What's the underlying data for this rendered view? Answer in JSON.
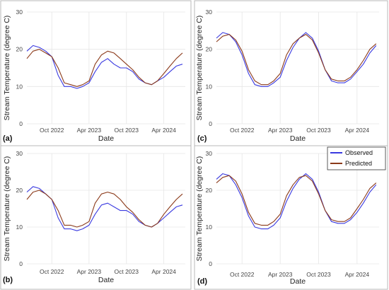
{
  "figure": {
    "legend": {
      "entries": [
        {
          "label": "Observed",
          "color": "#3a3ae0"
        },
        {
          "label": "Predicted",
          "color": "#8b3a1a"
        }
      ]
    }
  },
  "chart_data": [
    {
      "panel_label": "(a)",
      "type": "line",
      "xlabel": "Date",
      "ylabel": "Stream Temperature (degree C)",
      "ylim": [
        0,
        30
      ],
      "yticks": [
        0,
        10,
        20,
        30
      ],
      "xlim": [
        "2022-06-01",
        "2024-07-15"
      ],
      "xticks": [
        {
          "date": "2022-10-01",
          "label": "Oct 2022"
        },
        {
          "date": "2023-04-01",
          "label": "Apr 2023"
        },
        {
          "date": "2023-10-01",
          "label": "Oct 2023"
        },
        {
          "date": "2024-04-01",
          "label": "Apr 2024"
        }
      ],
      "grid": true,
      "series": [
        {
          "name": "Observed",
          "color": "#3a3ae0",
          "x": [
            "2022-06-01",
            "2022-07-01",
            "2022-08-01",
            "2022-09-01",
            "2022-10-01",
            "2022-11-01",
            "2022-12-01",
            "2023-01-01",
            "2023-02-01",
            "2023-03-01",
            "2023-04-01",
            "2023-05-01",
            "2023-06-01",
            "2023-07-01",
            "2023-08-01",
            "2023-09-01",
            "2023-10-01",
            "2023-11-01",
            "2023-12-01",
            "2024-01-01",
            "2024-02-01",
            "2024-03-01",
            "2024-04-01",
            "2024-05-01",
            "2024-06-01",
            "2024-07-01"
          ],
          "y": [
            19.5,
            21.0,
            20.5,
            19.5,
            18.0,
            13.0,
            10.0,
            10.0,
            9.5,
            10.0,
            11.0,
            14.0,
            16.5,
            17.5,
            16.0,
            15.0,
            15.0,
            14.0,
            12.0,
            11.0,
            10.5,
            11.5,
            12.5,
            14.0,
            15.5,
            16.0
          ]
        },
        {
          "name": "Predicted",
          "color": "#8b3a1a",
          "x": [
            "2022-06-01",
            "2022-07-01",
            "2022-08-01",
            "2022-09-01",
            "2022-10-01",
            "2022-11-01",
            "2022-12-01",
            "2023-01-01",
            "2023-02-01",
            "2023-03-01",
            "2023-04-01",
            "2023-05-01",
            "2023-06-01",
            "2023-07-01",
            "2023-08-01",
            "2023-09-01",
            "2023-10-01",
            "2023-11-01",
            "2023-12-01",
            "2024-01-01",
            "2024-02-01",
            "2024-03-01",
            "2024-04-01",
            "2024-05-01",
            "2024-06-01",
            "2024-07-01"
          ],
          "y": [
            17.5,
            19.5,
            20.0,
            19.0,
            18.0,
            15.0,
            11.0,
            10.5,
            10.0,
            10.5,
            11.5,
            16.0,
            18.5,
            19.5,
            19.0,
            17.5,
            16.0,
            14.5,
            12.5,
            11.0,
            10.5,
            11.5,
            13.5,
            15.5,
            17.5,
            19.0
          ]
        }
      ]
    },
    {
      "panel_label": "(b)",
      "type": "line",
      "xlabel": "Date",
      "ylabel": "Stream Temperature (degree C)",
      "ylim": [
        0,
        30
      ],
      "yticks": [
        0,
        10,
        20,
        30
      ],
      "xlim": [
        "2022-06-01",
        "2024-07-15"
      ],
      "xticks": [
        {
          "date": "2022-10-01",
          "label": "Oct 2022"
        },
        {
          "date": "2023-04-01",
          "label": "Apr 2023"
        },
        {
          "date": "2023-10-01",
          "label": "Oct 2023"
        },
        {
          "date": "2024-04-01",
          "label": "Apr 2024"
        }
      ],
      "grid": true,
      "series": [
        {
          "name": "Observed",
          "color": "#3a3ae0",
          "x": [
            "2022-06-01",
            "2022-07-01",
            "2022-08-01",
            "2022-09-01",
            "2022-10-01",
            "2022-11-01",
            "2022-12-01",
            "2023-01-01",
            "2023-02-01",
            "2023-03-01",
            "2023-04-01",
            "2023-05-01",
            "2023-06-01",
            "2023-07-01",
            "2023-08-01",
            "2023-09-01",
            "2023-10-01",
            "2023-11-01",
            "2023-12-01",
            "2024-01-01",
            "2024-02-01",
            "2024-03-01",
            "2024-04-01",
            "2024-05-01",
            "2024-06-01",
            "2024-07-01"
          ],
          "y": [
            19.5,
            21.0,
            20.5,
            19.0,
            17.5,
            12.5,
            9.5,
            9.5,
            9.0,
            9.5,
            10.5,
            13.5,
            16.0,
            16.5,
            15.5,
            14.5,
            14.5,
            13.5,
            11.5,
            10.5,
            10.0,
            11.0,
            12.5,
            14.0,
            15.5,
            16.0
          ]
        },
        {
          "name": "Predicted",
          "color": "#8b3a1a",
          "x": [
            "2022-06-01",
            "2022-07-01",
            "2022-08-01",
            "2022-09-01",
            "2022-10-01",
            "2022-11-01",
            "2022-12-01",
            "2023-01-01",
            "2023-02-01",
            "2023-03-01",
            "2023-04-01",
            "2023-05-01",
            "2023-06-01",
            "2023-07-01",
            "2023-08-01",
            "2023-09-01",
            "2023-10-01",
            "2023-11-01",
            "2023-12-01",
            "2024-01-01",
            "2024-02-01",
            "2024-03-01",
            "2024-04-01",
            "2024-05-01",
            "2024-06-01",
            "2024-07-01"
          ],
          "y": [
            17.5,
            19.5,
            20.0,
            19.0,
            17.5,
            14.5,
            10.5,
            10.5,
            10.0,
            10.5,
            11.5,
            16.5,
            19.0,
            19.5,
            19.0,
            17.5,
            15.5,
            14.0,
            12.0,
            10.5,
            10.0,
            11.0,
            13.5,
            15.5,
            17.5,
            19.0
          ]
        }
      ]
    },
    {
      "panel_label": "(c)",
      "type": "line",
      "xlabel": "Date",
      "ylabel": "Stream Temperature (degree C)",
      "ylim": [
        0,
        30
      ],
      "yticks": [
        0,
        10,
        20,
        30
      ],
      "xlim": [
        "2022-06-01",
        "2024-07-15"
      ],
      "xticks": [
        {
          "date": "2022-10-01",
          "label": "Oct 2022"
        },
        {
          "date": "2023-04-01",
          "label": "Apr 2023"
        },
        {
          "date": "2023-10-01",
          "label": "Oct 2023"
        },
        {
          "date": "2024-04-01",
          "label": "Apr 2024"
        }
      ],
      "grid": true,
      "series": [
        {
          "name": "Observed",
          "color": "#3a3ae0",
          "x": [
            "2022-06-01",
            "2022-07-01",
            "2022-08-01",
            "2022-09-01",
            "2022-10-01",
            "2022-11-01",
            "2022-12-01",
            "2023-01-01",
            "2023-02-01",
            "2023-03-01",
            "2023-04-01",
            "2023-05-01",
            "2023-06-01",
            "2023-07-01",
            "2023-08-01",
            "2023-09-01",
            "2023-10-01",
            "2023-11-01",
            "2023-12-01",
            "2024-01-01",
            "2024-02-01",
            "2024-03-01",
            "2024-04-01",
            "2024-05-01",
            "2024-06-01",
            "2024-07-01"
          ],
          "y": [
            23.0,
            24.5,
            24.0,
            22.0,
            18.5,
            13.5,
            10.5,
            10.0,
            10.0,
            11.0,
            12.5,
            17.0,
            20.5,
            23.0,
            24.5,
            23.0,
            19.5,
            14.5,
            11.5,
            11.0,
            11.0,
            12.0,
            14.0,
            16.0,
            19.0,
            21.0
          ]
        },
        {
          "name": "Predicted",
          "color": "#8b3a1a",
          "x": [
            "2022-06-01",
            "2022-07-01",
            "2022-08-01",
            "2022-09-01",
            "2022-10-01",
            "2022-11-01",
            "2022-12-01",
            "2023-01-01",
            "2023-02-01",
            "2023-03-01",
            "2023-04-01",
            "2023-05-01",
            "2023-06-01",
            "2023-07-01",
            "2023-08-01",
            "2023-09-01",
            "2023-10-01",
            "2023-11-01",
            "2023-12-01",
            "2024-01-01",
            "2024-02-01",
            "2024-03-01",
            "2024-04-01",
            "2024-05-01",
            "2024-06-01",
            "2024-07-01"
          ],
          "y": [
            22.0,
            23.5,
            24.0,
            22.5,
            19.5,
            14.5,
            11.5,
            10.5,
            10.5,
            11.5,
            13.5,
            18.5,
            21.5,
            23.0,
            24.0,
            22.5,
            19.0,
            14.5,
            12.0,
            11.5,
            11.5,
            12.5,
            14.5,
            17.0,
            20.0,
            21.5
          ]
        }
      ]
    },
    {
      "panel_label": "(d)",
      "type": "line",
      "xlabel": "Date",
      "ylabel": "Stream Temperature (degree C)",
      "ylim": [
        0,
        30
      ],
      "yticks": [
        0,
        10,
        20,
        30
      ],
      "xlim": [
        "2022-06-01",
        "2024-07-15"
      ],
      "xticks": [
        {
          "date": "2022-10-01",
          "label": "Oct 2022"
        },
        {
          "date": "2023-04-01",
          "label": "Apr 2023"
        },
        {
          "date": "2023-10-01",
          "label": "Oct 2023"
        },
        {
          "date": "2024-04-01",
          "label": "Apr 2024"
        }
      ],
      "grid": true,
      "legend": "top-right",
      "series": [
        {
          "name": "Observed",
          "color": "#3a3ae0",
          "x": [
            "2022-06-01",
            "2022-07-01",
            "2022-08-01",
            "2022-09-01",
            "2022-10-01",
            "2022-11-01",
            "2022-12-01",
            "2023-01-01",
            "2023-02-01",
            "2023-03-01",
            "2023-04-01",
            "2023-05-01",
            "2023-06-01",
            "2023-07-01",
            "2023-08-01",
            "2023-09-01",
            "2023-10-01",
            "2023-11-01",
            "2023-12-01",
            "2024-01-01",
            "2024-02-01",
            "2024-03-01",
            "2024-04-01",
            "2024-05-01",
            "2024-06-01",
            "2024-07-01"
          ],
          "y": [
            23.0,
            24.5,
            24.0,
            21.5,
            18.0,
            13.0,
            10.0,
            9.5,
            9.5,
            10.5,
            12.5,
            17.0,
            20.5,
            23.0,
            24.5,
            23.0,
            19.5,
            14.5,
            11.5,
            11.0,
            11.0,
            12.0,
            14.0,
            16.5,
            19.5,
            21.5
          ]
        },
        {
          "name": "Predicted",
          "color": "#8b3a1a",
          "x": [
            "2022-06-01",
            "2022-07-01",
            "2022-08-01",
            "2022-09-01",
            "2022-10-01",
            "2022-11-01",
            "2022-12-01",
            "2023-01-01",
            "2023-02-01",
            "2023-03-01",
            "2023-04-01",
            "2023-05-01",
            "2023-06-01",
            "2023-07-01",
            "2023-08-01",
            "2023-09-01",
            "2023-10-01",
            "2023-11-01",
            "2023-12-01",
            "2024-01-01",
            "2024-02-01",
            "2024-03-01",
            "2024-04-01",
            "2024-05-01",
            "2024-06-01",
            "2024-07-01"
          ],
          "y": [
            22.0,
            23.5,
            24.0,
            22.5,
            19.0,
            14.0,
            11.0,
            10.5,
            10.5,
            11.5,
            13.5,
            18.5,
            21.5,
            23.5,
            24.0,
            22.5,
            19.0,
            14.5,
            12.0,
            11.5,
            11.5,
            12.5,
            15.0,
            17.5,
            20.5,
            22.0
          ]
        }
      ]
    }
  ]
}
